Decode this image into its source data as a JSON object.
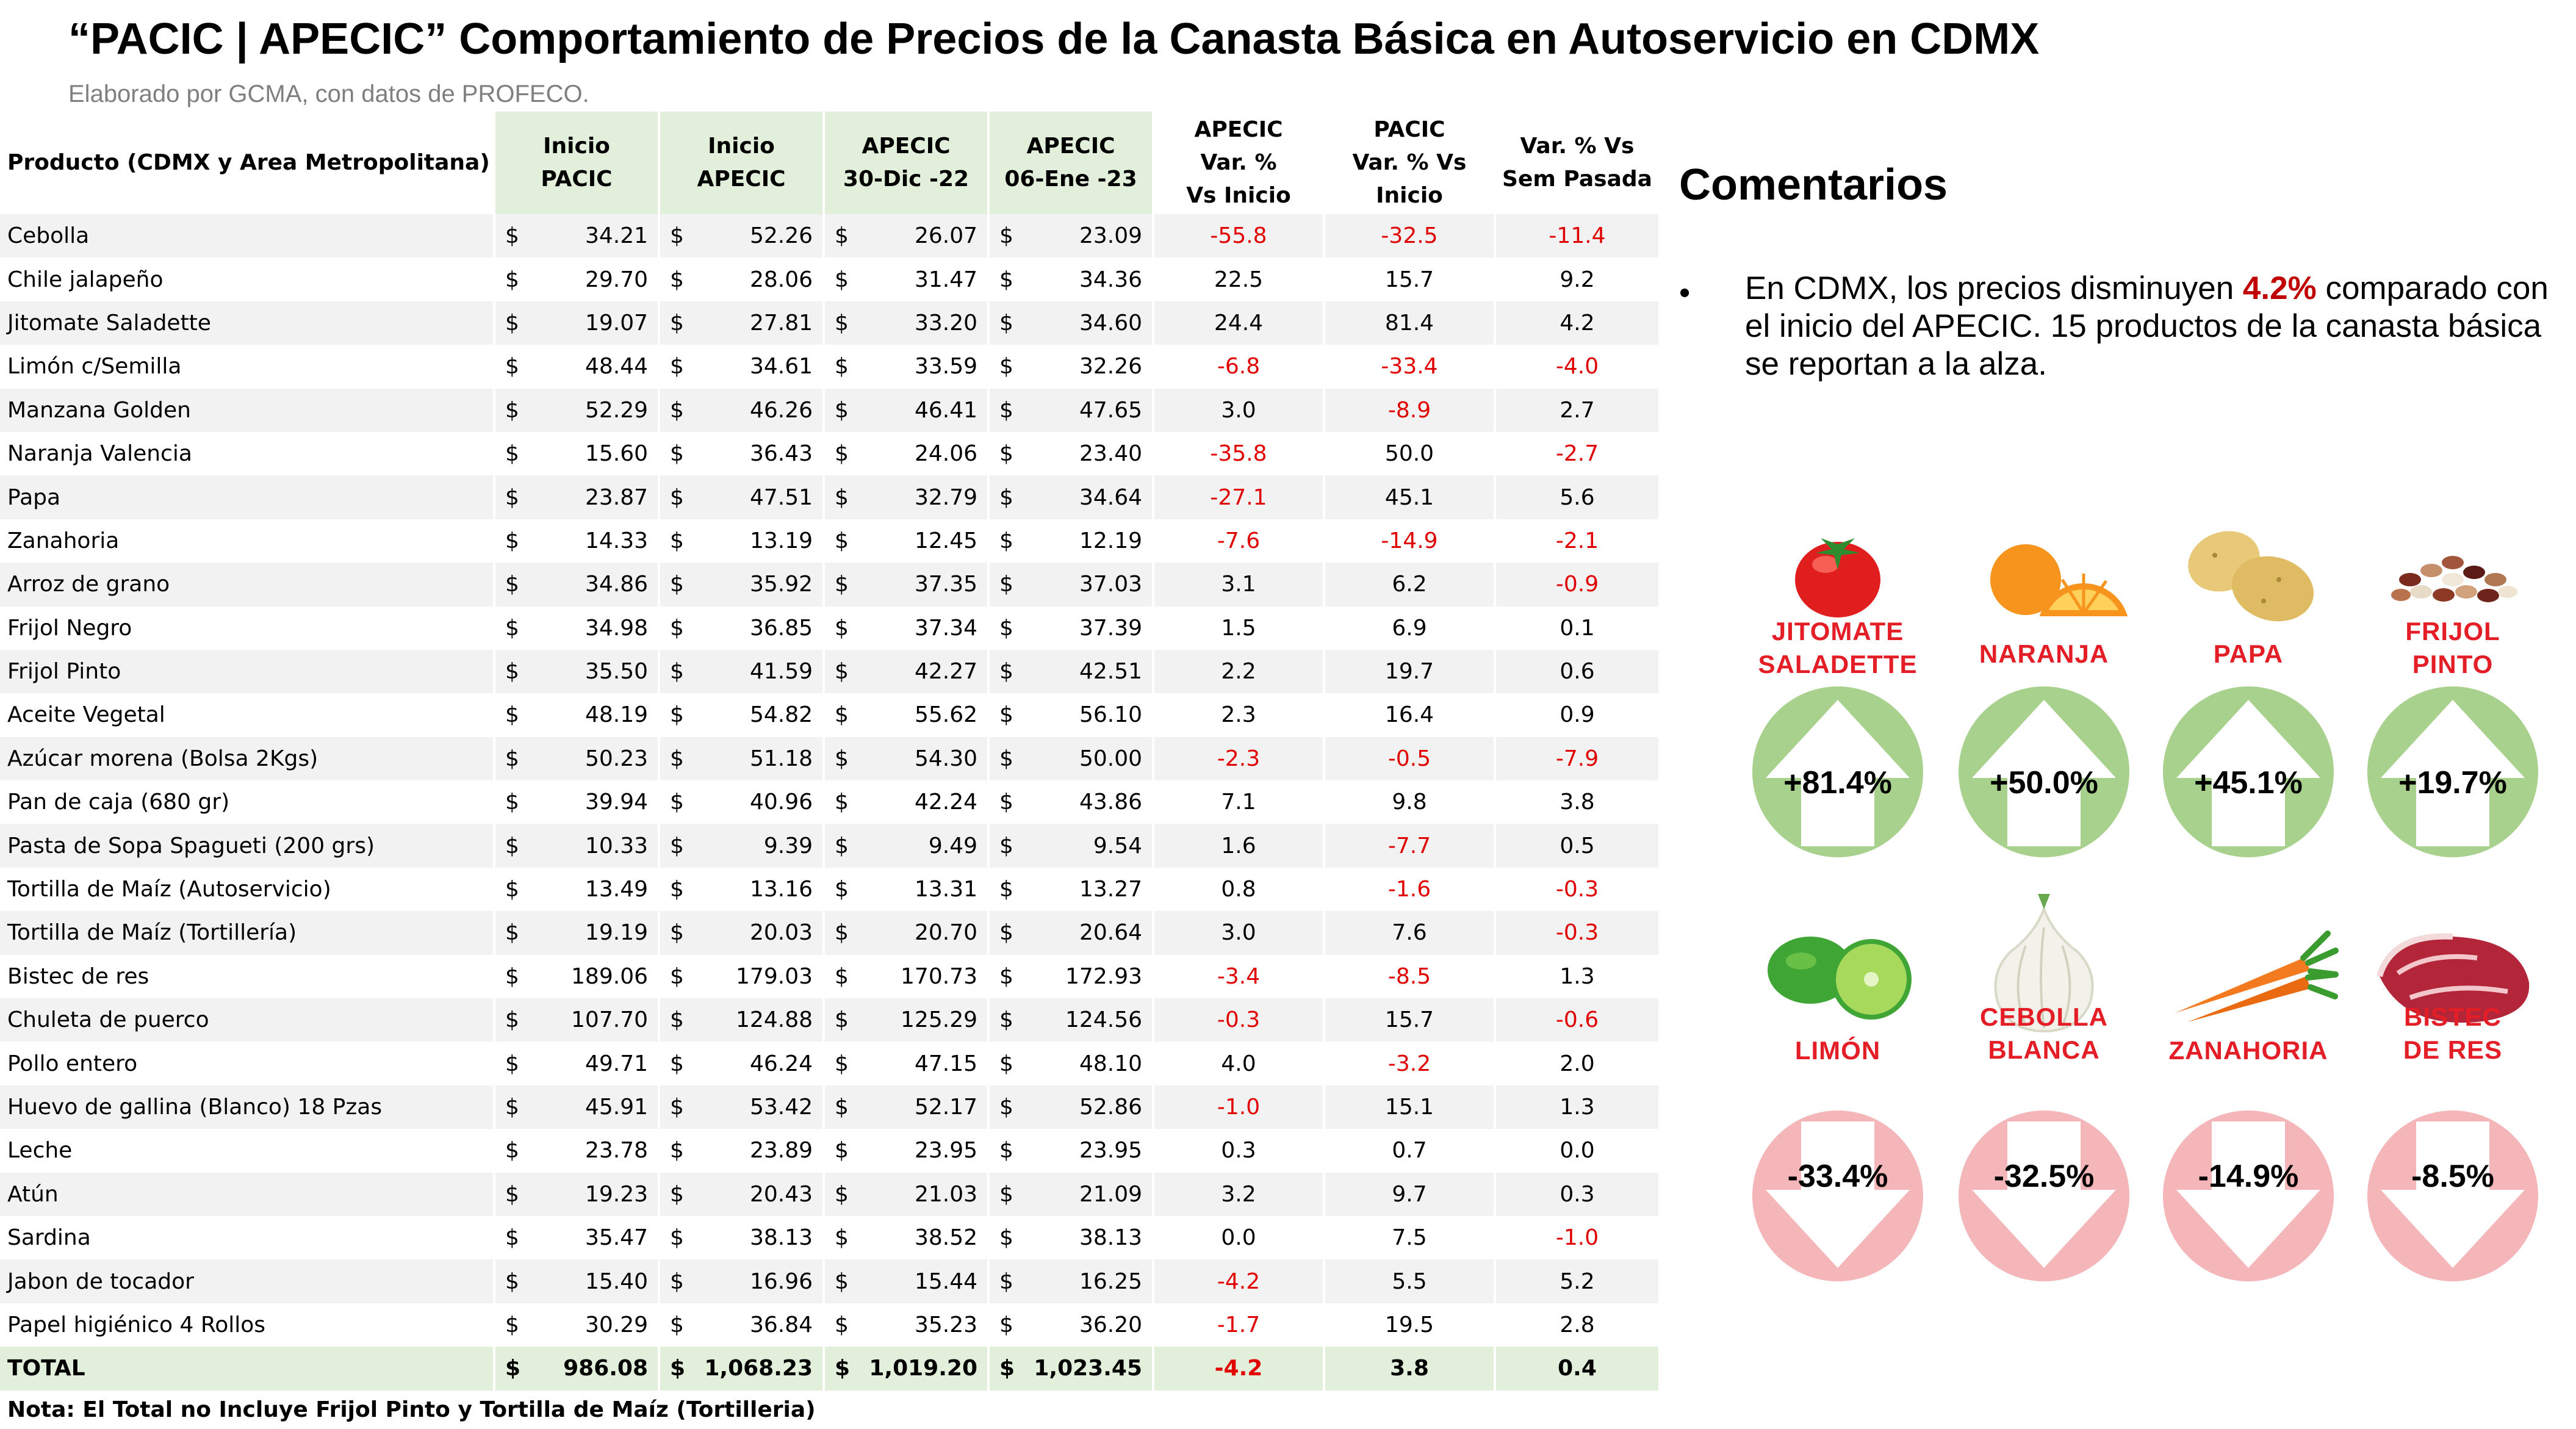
{
  "header": {
    "title": "“PACIC | APECIC” Comportamiento de Precios de la Canasta Básica en Autoservicio en CDMX",
    "subtitle": "Elaborado por GCMA, con datos de PROFECO."
  },
  "table": {
    "columns": {
      "producto": "Producto (CDMX y Area Metropolitana)",
      "inicio_pacic": [
        "Inicio",
        "PACIC"
      ],
      "inicio_apecic": [
        "Inicio",
        "APECIC"
      ],
      "apecic_30dic": [
        "APECIC",
        "30-Dic -22"
      ],
      "apecic_06ene": [
        "APECIC",
        "06-Ene -23"
      ],
      "var_apecic": [
        "APECIC",
        "Var. %",
        "Vs  Inicio"
      ],
      "var_pacic": [
        "PACIC",
        "Var. % Vs",
        "Inicio"
      ],
      "var_sem": [
        "Var. % Vs",
        "Sem Pasada"
      ]
    },
    "currency": "$",
    "rows": [
      {
        "producto": "Cebolla",
        "inicio_pacic": "34.21",
        "inicio_apecic": "52.26",
        "apecic_30dic": "26.07",
        "apecic_06ene": "23.09",
        "var_apecic": "-55.8",
        "var_pacic": "-32.5",
        "var_sem": "-11.4"
      },
      {
        "producto": "Chile jalapeño",
        "inicio_pacic": "29.70",
        "inicio_apecic": "28.06",
        "apecic_30dic": "31.47",
        "apecic_06ene": "34.36",
        "var_apecic": "22.5",
        "var_pacic": "15.7",
        "var_sem": "9.2"
      },
      {
        "producto": "Jitomate Saladette",
        "inicio_pacic": "19.07",
        "inicio_apecic": "27.81",
        "apecic_30dic": "33.20",
        "apecic_06ene": "34.60",
        "var_apecic": "24.4",
        "var_pacic": "81.4",
        "var_sem": "4.2"
      },
      {
        "producto": "Limón c/Semilla",
        "inicio_pacic": "48.44",
        "inicio_apecic": "34.61",
        "apecic_30dic": "33.59",
        "apecic_06ene": "32.26",
        "var_apecic": "-6.8",
        "var_pacic": "-33.4",
        "var_sem": "-4.0"
      },
      {
        "producto": "Manzana Golden",
        "inicio_pacic": "52.29",
        "inicio_apecic": "46.26",
        "apecic_30dic": "46.41",
        "apecic_06ene": "47.65",
        "var_apecic": "3.0",
        "var_pacic": "-8.9",
        "var_sem": "2.7"
      },
      {
        "producto": "Naranja Valencia",
        "inicio_pacic": "15.60",
        "inicio_apecic": "36.43",
        "apecic_30dic": "24.06",
        "apecic_06ene": "23.40",
        "var_apecic": "-35.8",
        "var_pacic": "50.0",
        "var_sem": "-2.7"
      },
      {
        "producto": "Papa",
        "inicio_pacic": "23.87",
        "inicio_apecic": "47.51",
        "apecic_30dic": "32.79",
        "apecic_06ene": "34.64",
        "var_apecic": "-27.1",
        "var_pacic": "45.1",
        "var_sem": "5.6"
      },
      {
        "producto": "Zanahoria",
        "inicio_pacic": "14.33",
        "inicio_apecic": "13.19",
        "apecic_30dic": "12.45",
        "apecic_06ene": "12.19",
        "var_apecic": "-7.6",
        "var_pacic": "-14.9",
        "var_sem": "-2.1"
      },
      {
        "producto": "Arroz de grano",
        "inicio_pacic": "34.86",
        "inicio_apecic": "35.92",
        "apecic_30dic": "37.35",
        "apecic_06ene": "37.03",
        "var_apecic": "3.1",
        "var_pacic": "6.2",
        "var_sem": "-0.9"
      },
      {
        "producto": "Frijol Negro",
        "inicio_pacic": "34.98",
        "inicio_apecic": "36.85",
        "apecic_30dic": "37.34",
        "apecic_06ene": "37.39",
        "var_apecic": "1.5",
        "var_pacic": "6.9",
        "var_sem": "0.1"
      },
      {
        "producto": "Frijol Pinto",
        "inicio_pacic": "35.50",
        "inicio_apecic": "41.59",
        "apecic_30dic": "42.27",
        "apecic_06ene": "42.51",
        "var_apecic": "2.2",
        "var_pacic": "19.7",
        "var_sem": "0.6"
      },
      {
        "producto": "Aceite Vegetal",
        "inicio_pacic": "48.19",
        "inicio_apecic": "54.82",
        "apecic_30dic": "55.62",
        "apecic_06ene": "56.10",
        "var_apecic": "2.3",
        "var_pacic": "16.4",
        "var_sem": "0.9"
      },
      {
        "producto": "Azúcar morena (Bolsa 2Kgs)",
        "inicio_pacic": "50.23",
        "inicio_apecic": "51.18",
        "apecic_30dic": "54.30",
        "apecic_06ene": "50.00",
        "var_apecic": "-2.3",
        "var_pacic": "-0.5",
        "var_sem": "-7.9"
      },
      {
        "producto": "Pan de caja (680 gr)",
        "inicio_pacic": "39.94",
        "inicio_apecic": "40.96",
        "apecic_30dic": "42.24",
        "apecic_06ene": "43.86",
        "var_apecic": "7.1",
        "var_pacic": "9.8",
        "var_sem": "3.8"
      },
      {
        "producto": "Pasta de Sopa Spagueti (200 grs)",
        "inicio_pacic": "10.33",
        "inicio_apecic": "9.39",
        "apecic_30dic": "9.49",
        "apecic_06ene": "9.54",
        "var_apecic": "1.6",
        "var_pacic": "-7.7",
        "var_sem": "0.5"
      },
      {
        "producto": "Tortilla de Maíz (Autoservicio)",
        "inicio_pacic": "13.49",
        "inicio_apecic": "13.16",
        "apecic_30dic": "13.31",
        "apecic_06ene": "13.27",
        "var_apecic": "0.8",
        "var_pacic": "-1.6",
        "var_sem": "-0.3"
      },
      {
        "producto": "Tortilla de Maíz (Tortillería)",
        "inicio_pacic": "19.19",
        "inicio_apecic": "20.03",
        "apecic_30dic": "20.70",
        "apecic_06ene": "20.64",
        "var_apecic": "3.0",
        "var_pacic": "7.6",
        "var_sem": "-0.3"
      },
      {
        "producto": "Bistec de res",
        "inicio_pacic": "189.06",
        "inicio_apecic": "179.03",
        "apecic_30dic": "170.73",
        "apecic_06ene": "172.93",
        "var_apecic": "-3.4",
        "var_pacic": "-8.5",
        "var_sem": "1.3"
      },
      {
        "producto": "Chuleta de puerco",
        "inicio_pacic": "107.70",
        "inicio_apecic": "124.88",
        "apecic_30dic": "125.29",
        "apecic_06ene": "124.56",
        "var_apecic": "-0.3",
        "var_pacic": "15.7",
        "var_sem": "-0.6"
      },
      {
        "producto": "Pollo entero",
        "inicio_pacic": "49.71",
        "inicio_apecic": "46.24",
        "apecic_30dic": "47.15",
        "apecic_06ene": "48.10",
        "var_apecic": "4.0",
        "var_pacic": "-3.2",
        "var_sem": "2.0"
      },
      {
        "producto": "Huevo de gallina (Blanco) 18 Pzas",
        "inicio_pacic": "45.91",
        "inicio_apecic": "53.42",
        "apecic_30dic": "52.17",
        "apecic_06ene": "52.86",
        "var_apecic": "-1.0",
        "var_pacic": "15.1",
        "var_sem": "1.3"
      },
      {
        "producto": "Leche",
        "inicio_pacic": "23.78",
        "inicio_apecic": "23.89",
        "apecic_30dic": "23.95",
        "apecic_06ene": "23.95",
        "var_apecic": "0.3",
        "var_pacic": "0.7",
        "var_sem": "0.0"
      },
      {
        "producto": "Atún",
        "inicio_pacic": "19.23",
        "inicio_apecic": "20.43",
        "apecic_30dic": "21.03",
        "apecic_06ene": "21.09",
        "var_apecic": "3.2",
        "var_pacic": "9.7",
        "var_sem": "0.3"
      },
      {
        "producto": "Sardina",
        "inicio_pacic": "35.47",
        "inicio_apecic": "38.13",
        "apecic_30dic": "38.52",
        "apecic_06ene": "38.13",
        "var_apecic": "0.0",
        "var_pacic": "7.5",
        "var_sem": "-1.0"
      },
      {
        "producto": "Jabon de tocador",
        "inicio_pacic": "15.40",
        "inicio_apecic": "16.96",
        "apecic_30dic": "15.44",
        "apecic_06ene": "16.25",
        "var_apecic": "-4.2",
        "var_pacic": "5.5",
        "var_sem": "5.2"
      },
      {
        "producto": "Papel higiénico 4 Rollos",
        "inicio_pacic": "30.29",
        "inicio_apecic": "36.84",
        "apecic_30dic": "35.23",
        "apecic_06ene": "36.20",
        "var_apecic": "-1.7",
        "var_pacic": "19.5",
        "var_sem": "2.8"
      }
    ],
    "total": {
      "producto": "TOTAL",
      "inicio_pacic": "986.08",
      "inicio_apecic": "1,068.23",
      "apecic_30dic": "1,019.20",
      "apecic_06ene": "1,023.45",
      "var_apecic": "-4.2",
      "var_pacic": "3.8",
      "var_sem": "0.4"
    },
    "note": "Nota: El Total no Incluye Frijol Pinto y Tortilla de Maíz (Tortilleria)"
  },
  "comments": {
    "heading": "Comentarios",
    "bullet": "•",
    "text_before": "En CDMX, los precios disminuyen ",
    "highlight": "4.2%",
    "text_after": " comparado con el inicio del APECIC. 15 productos de la canasta básica se reportan a la alza."
  },
  "highlights": {
    "up": [
      {
        "icon": "tomato-icon",
        "label": [
          "JITOMATE",
          "SALADETTE"
        ],
        "value": "+81.4%"
      },
      {
        "icon": "orange-icon",
        "label": [
          "NARANJA"
        ],
        "value": "+50.0%"
      },
      {
        "icon": "potato-icon",
        "label": [
          "PAPA"
        ],
        "value": "+45.1%"
      },
      {
        "icon": "beans-icon",
        "label": [
          "FRIJOL",
          "PINTO"
        ],
        "value": "+19.7%"
      }
    ],
    "down": [
      {
        "icon": "lime-icon",
        "label": [
          "LIMÓN"
        ],
        "value": "-33.4%"
      },
      {
        "icon": "onion-icon",
        "label": [
          "CEBOLLA",
          "BLANCA"
        ],
        "value": "-32.5%"
      },
      {
        "icon": "carrot-icon",
        "label": [
          "ZANAHORIA"
        ],
        "value": "-14.9%"
      },
      {
        "icon": "beef-icon",
        "label": [
          "BISTEC",
          "DE RES"
        ],
        "value": "-8.5%"
      }
    ],
    "colors": {
      "up_badge": "#a9d18e",
      "down_badge": "#f4b6b8",
      "label": "#e41e26",
      "negative": "#e00000"
    }
  }
}
